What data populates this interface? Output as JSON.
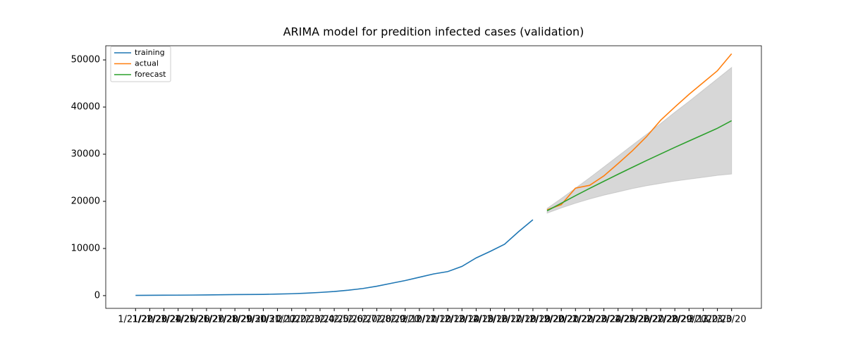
{
  "chart_data": {
    "type": "line",
    "title": "ARIMA model for predition infected cases (validation)",
    "categories": [
      "1/21/20",
      "1/22/20",
      "1/23/20",
      "1/24/20",
      "1/25/20",
      "1/26/20",
      "1/27/20",
      "1/28/20",
      "1/29/20",
      "1/30/20",
      "1/31/20",
      "2/1/20",
      "2/2/20",
      "2/3/20",
      "2/4/20",
      "2/5/20",
      "2/6/20",
      "2/7/20",
      "2/8/20",
      "2/9/20",
      "2/10/20",
      "2/11/20",
      "2/12/20",
      "2/13/20",
      "2/14/20",
      "2/15/20",
      "2/16/20",
      "2/17/20",
      "2/18/20",
      "2/19/20",
      "2/20/20",
      "2/21/20",
      "2/22/20",
      "2/23/20",
      "2/24/20",
      "2/25/20",
      "2/26/20",
      "2/27/20",
      "2/28/20",
      "2/29/20",
      "3/1/20",
      "3/2/20",
      "3/3/20"
    ],
    "series": [
      {
        "name": "training",
        "color": "#1f77b4",
        "values": [
          50,
          70,
          90,
          100,
          120,
          150,
          180,
          220,
          240,
          260,
          330,
          400,
          520,
          680,
          880,
          1150,
          1500,
          2000,
          2600,
          3200,
          3900,
          4600,
          5100,
          6200,
          8000,
          9400,
          10900,
          13600,
          16100,
          null,
          null,
          null,
          null,
          null,
          null,
          null,
          null,
          null,
          null,
          null,
          null,
          null,
          null
        ]
      },
      {
        "name": "actual",
        "color": "#ff7f0e",
        "values": [
          null,
          null,
          null,
          null,
          null,
          null,
          null,
          null,
          null,
          null,
          null,
          null,
          null,
          null,
          null,
          null,
          null,
          null,
          null,
          null,
          null,
          null,
          null,
          null,
          null,
          null,
          null,
          null,
          null,
          18200,
          19300,
          22800,
          23400,
          25400,
          28000,
          30700,
          33700,
          37200,
          40000,
          42700,
          45200,
          47700,
          51300
        ]
      },
      {
        "name": "forecast",
        "color": "#2ca02c",
        "values": [
          null,
          null,
          null,
          null,
          null,
          null,
          null,
          null,
          null,
          null,
          null,
          null,
          null,
          null,
          null,
          null,
          null,
          null,
          null,
          null,
          null,
          null,
          null,
          null,
          null,
          null,
          null,
          null,
          null,
          18000,
          19600,
          21200,
          22750,
          24250,
          25750,
          27200,
          28650,
          30050,
          31450,
          32800,
          34150,
          35500,
          37100
        ]
      }
    ],
    "band": {
      "color": "#b0b0b0",
      "opacity": 0.5,
      "lower": [
        null,
        null,
        null,
        null,
        null,
        null,
        null,
        null,
        null,
        null,
        null,
        null,
        null,
        null,
        null,
        null,
        null,
        null,
        null,
        null,
        null,
        null,
        null,
        null,
        null,
        null,
        null,
        null,
        null,
        17500,
        18600,
        19600,
        20500,
        21300,
        22000,
        22700,
        23300,
        23800,
        24300,
        24700,
        25100,
        25500,
        25800
      ],
      "upper": [
        null,
        null,
        null,
        null,
        null,
        null,
        null,
        null,
        null,
        null,
        null,
        null,
        null,
        null,
        null,
        null,
        null,
        null,
        null,
        null,
        null,
        null,
        null,
        null,
        null,
        null,
        null,
        null,
        null,
        18500,
        20600,
        22800,
        25000,
        27300,
        29600,
        31900,
        34200,
        36500,
        38900,
        41200,
        43600,
        46000,
        48400
      ]
    },
    "ylim": [
      -2700,
      53000
    ],
    "yticks": [
      0,
      10000,
      20000,
      30000,
      40000,
      50000
    ],
    "legend": "upper left"
  }
}
